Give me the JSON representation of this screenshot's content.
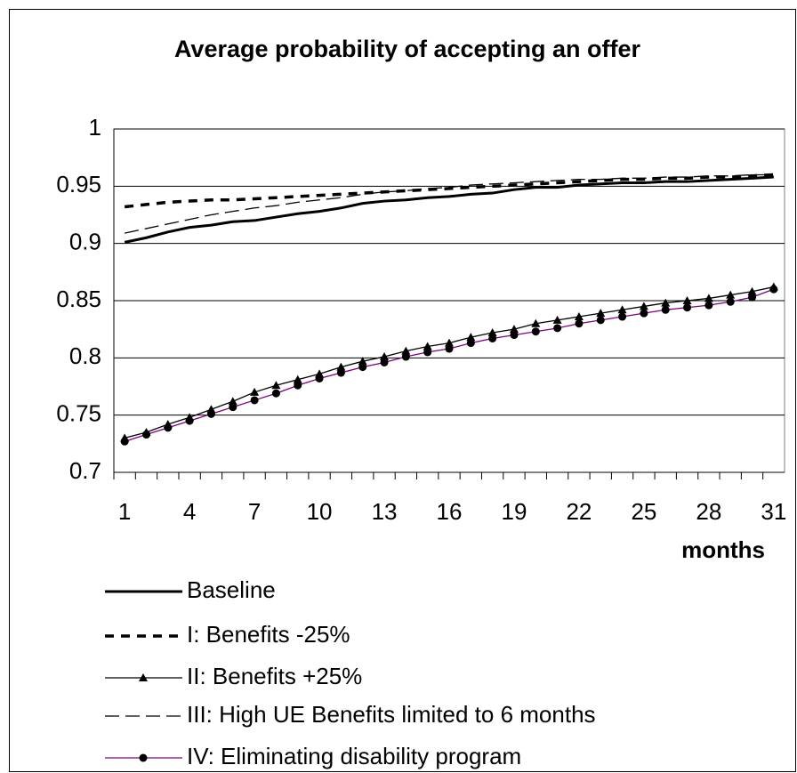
{
  "chart_data": {
    "type": "line",
    "title": "Average probability of accepting an offer",
    "x_label": "months",
    "categories": [
      1,
      null,
      null,
      4,
      null,
      null,
      7,
      null,
      null,
      10,
      null,
      null,
      13,
      null,
      null,
      16,
      null,
      null,
      19,
      null,
      null,
      22,
      null,
      null,
      25,
      null,
      null,
      28,
      null,
      null,
      31
    ],
    "ylim": [
      0.7,
      1
    ],
    "yticks": [
      0.7,
      0.75,
      0.8,
      0.85,
      0.9,
      0.95,
      1
    ],
    "grid": true,
    "series": [
      {
        "name": "Baseline",
        "color": "#000000",
        "width": 3,
        "dash": "solid",
        "marker": "none",
        "values": [
          0.901,
          0.905,
          0.91,
          0.914,
          0.916,
          0.919,
          0.92,
          0.923,
          0.926,
          0.928,
          0.931,
          0.935,
          0.937,
          0.938,
          0.94,
          0.941,
          0.943,
          0.944,
          0.947,
          0.949,
          0.949,
          0.951,
          0.952,
          0.953,
          0.953,
          0.954,
          0.954,
          0.955,
          0.956,
          0.957,
          0.958
        ]
      },
      {
        "name": "I: Benefits -25%",
        "color": "#000000",
        "width": 3.5,
        "dash": "dashed",
        "marker": "none",
        "values": [
          0.932,
          0.934,
          0.936,
          0.937,
          0.938,
          0.938,
          0.939,
          0.94,
          0.941,
          0.942,
          0.943,
          0.944,
          0.945,
          0.946,
          0.947,
          0.948,
          0.949,
          0.95,
          0.951,
          0.952,
          0.953,
          0.954,
          0.955,
          0.956,
          0.956,
          0.957,
          0.957,
          0.958,
          0.958,
          0.959,
          0.96
        ]
      },
      {
        "name": "II: Benefits +25%",
        "color": "#000000",
        "width": 1.3,
        "dash": "solid",
        "marker": "triangle",
        "values": [
          0.73,
          0.735,
          0.742,
          0.748,
          0.755,
          0.762,
          0.77,
          0.776,
          0.781,
          0.786,
          0.792,
          0.797,
          0.801,
          0.806,
          0.81,
          0.813,
          0.818,
          0.822,
          0.825,
          0.83,
          0.833,
          0.836,
          0.839,
          0.842,
          0.845,
          0.848,
          0.85,
          0.852,
          0.855,
          0.858,
          0.862
        ]
      },
      {
        "name": "III: High UE Benefits limited to 6 months",
        "color": "#000000",
        "width": 1.3,
        "dash": "long-dashed",
        "marker": "none",
        "values": [
          0.909,
          0.913,
          0.917,
          0.921,
          0.925,
          0.928,
          0.931,
          0.933,
          0.936,
          0.938,
          0.94,
          0.943,
          0.945,
          0.946,
          0.948,
          0.949,
          0.951,
          0.952,
          0.953,
          0.954,
          0.955,
          0.956,
          0.956,
          0.957,
          0.957,
          0.958,
          0.958,
          0.959,
          0.959,
          0.96,
          0.96
        ]
      },
      {
        "name": "IV: Eliminating disability program",
        "color": "#800080",
        "width": 1.3,
        "dash": "solid",
        "marker": "circle",
        "values": [
          0.727,
          0.733,
          0.739,
          0.745,
          0.751,
          0.757,
          0.763,
          0.769,
          0.776,
          0.782,
          0.787,
          0.792,
          0.796,
          0.801,
          0.805,
          0.808,
          0.813,
          0.817,
          0.82,
          0.823,
          0.826,
          0.83,
          0.833,
          0.836,
          0.839,
          0.842,
          0.844,
          0.846,
          0.849,
          0.853,
          0.86
        ]
      }
    ]
  }
}
